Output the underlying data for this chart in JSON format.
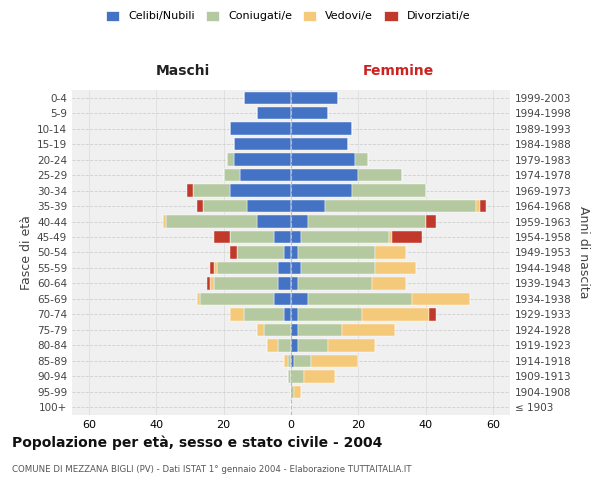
{
  "age_groups": [
    "100+",
    "95-99",
    "90-94",
    "85-89",
    "80-84",
    "75-79",
    "70-74",
    "65-69",
    "60-64",
    "55-59",
    "50-54",
    "45-49",
    "40-44",
    "35-39",
    "30-34",
    "25-29",
    "20-24",
    "15-19",
    "10-14",
    "5-9",
    "0-4"
  ],
  "birth_years": [
    "≤ 1903",
    "1904-1908",
    "1909-1913",
    "1914-1918",
    "1919-1923",
    "1924-1928",
    "1929-1933",
    "1934-1938",
    "1939-1943",
    "1944-1948",
    "1949-1953",
    "1954-1958",
    "1959-1963",
    "1964-1968",
    "1969-1973",
    "1974-1978",
    "1979-1983",
    "1984-1988",
    "1989-1993",
    "1994-1998",
    "1999-2003"
  ],
  "colors": {
    "celibi": "#4472c4",
    "coniugati": "#b5c9a0",
    "vedovi": "#f5c97a",
    "divorziati": "#c0392b"
  },
  "maschi": {
    "celibi": [
      0,
      0,
      0,
      0,
      0,
      0,
      2,
      5,
      4,
      4,
      2,
      5,
      10,
      13,
      18,
      15,
      17,
      17,
      18,
      10,
      14
    ],
    "coniugati": [
      0,
      0,
      1,
      1,
      4,
      8,
      12,
      22,
      19,
      18,
      14,
      13,
      27,
      13,
      11,
      5,
      2,
      0,
      0,
      0,
      0
    ],
    "vedovi": [
      0,
      0,
      0,
      1,
      3,
      2,
      4,
      1,
      1,
      1,
      0,
      0,
      1,
      0,
      0,
      0,
      0,
      0,
      0,
      0,
      0
    ],
    "divorziati": [
      0,
      0,
      0,
      0,
      0,
      0,
      0,
      0,
      1,
      1,
      2,
      5,
      0,
      2,
      2,
      0,
      0,
      0,
      0,
      0,
      0
    ]
  },
  "femmine": {
    "celibi": [
      0,
      0,
      0,
      1,
      2,
      2,
      2,
      5,
      2,
      3,
      2,
      3,
      5,
      10,
      18,
      20,
      19,
      17,
      18,
      11,
      14
    ],
    "coniugati": [
      0,
      1,
      4,
      5,
      9,
      13,
      19,
      31,
      22,
      22,
      23,
      26,
      35,
      45,
      22,
      13,
      4,
      0,
      0,
      0,
      0
    ],
    "vedovi": [
      0,
      2,
      9,
      14,
      14,
      16,
      20,
      17,
      10,
      12,
      9,
      1,
      0,
      1,
      0,
      0,
      0,
      0,
      0,
      0,
      0
    ],
    "divorziati": [
      0,
      0,
      0,
      0,
      0,
      0,
      2,
      0,
      0,
      0,
      0,
      9,
      3,
      2,
      0,
      0,
      0,
      0,
      0,
      0,
      0
    ]
  },
  "xlim": 65,
  "title": "Popolazione per età, sesso e stato civile - 2004",
  "subtitle": "COMUNE DI MEZZANA BIGLI (PV) - Dati ISTAT 1° gennaio 2004 - Elaborazione TUTTAITALIA.IT",
  "xlabel_left": "Maschi",
  "xlabel_right": "Femmine",
  "ylabel_left": "Fasce di età",
  "ylabel_right": "Anni di nascita",
  "legend_labels": [
    "Celibi/Nubili",
    "Coniugati/e",
    "Vedovi/e",
    "Divorziati/e"
  ],
  "bg_color": "#ffffff",
  "grid_color": "#cccccc"
}
